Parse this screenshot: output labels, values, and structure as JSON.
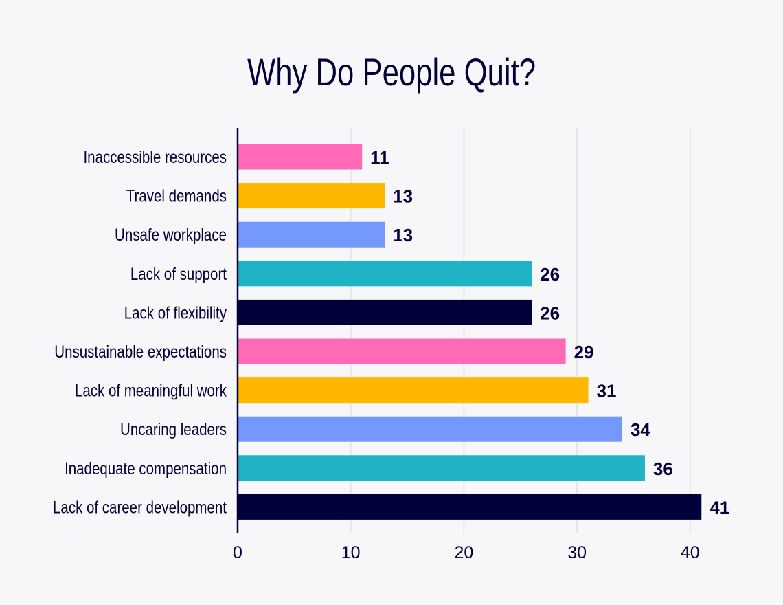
{
  "chart_data": {
    "type": "bar",
    "orientation": "horizontal",
    "title": "Why Do People Quit?",
    "xlabel": "",
    "ylabel": "",
    "xlim": [
      0,
      44
    ],
    "xticks": [
      0,
      10,
      20,
      30,
      40
    ],
    "grid": "vertical",
    "categories": [
      "Inaccessible resources",
      "Travel demands",
      "Unsafe workplace",
      "Lack of support",
      "Lack of flexibility",
      "Unsustainable expectations",
      "Lack of meaningful work",
      "Uncaring leaders",
      "Inadequate compensation",
      "Lack of career development"
    ],
    "values": [
      11,
      13,
      13,
      26,
      26,
      29,
      31,
      34,
      36,
      41
    ],
    "colors": [
      "#ff6ab7",
      "#ffb700",
      "#7598ff",
      "#1fb3c3",
      "#01003a",
      "#ff6ab7",
      "#ffb700",
      "#7598ff",
      "#1fb3c3",
      "#01003a"
    ]
  }
}
